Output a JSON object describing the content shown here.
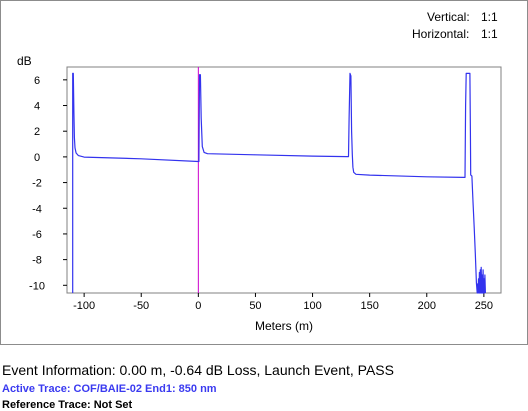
{
  "scale": {
    "vertical_label": "Vertical:",
    "vertical_value": "1:1",
    "horizontal_label": "Horizontal:",
    "horizontal_value": "1:1"
  },
  "chart_data": {
    "type": "line",
    "ylabel": "dB",
    "xlabel": "Meters (m)",
    "xlim": [
      -115,
      265
    ],
    "ylim": [
      -10.6,
      7.0
    ],
    "xticks": [
      -100,
      -50,
      0,
      50,
      100,
      150,
      200,
      250
    ],
    "yticks": [
      6,
      4,
      2,
      0,
      -2,
      -4,
      -6,
      -8,
      -10
    ],
    "trace_color": "#3333ee",
    "marker": {
      "x": 0,
      "color": "#cc00cc"
    },
    "series": [
      {
        "values": [
          [
            -110,
            -10.6
          ],
          [
            -110,
            6.5
          ],
          [
            -109.5,
            6.5
          ],
          [
            -109,
            3.5
          ],
          [
            -108.5,
            1.5
          ],
          [
            -108,
            0.7
          ],
          [
            -107,
            0.3
          ],
          [
            -105,
            0.1
          ],
          [
            -100,
            -0.02
          ],
          [
            -50,
            -0.15
          ],
          [
            0,
            -0.36
          ],
          [
            0.5,
            -0.36
          ],
          [
            1,
            6.4
          ],
          [
            1.8,
            6.4
          ],
          [
            2.5,
            3.0
          ],
          [
            3.5,
            0.8
          ],
          [
            5,
            0.35
          ],
          [
            8,
            0.25
          ],
          [
            50,
            0.16
          ],
          [
            100,
            0.06
          ],
          [
            130,
            0.02
          ],
          [
            131.5,
            0.02
          ],
          [
            132,
            3.0
          ],
          [
            132.8,
            6.5
          ],
          [
            133.6,
            6.3
          ],
          [
            134.2,
            2.0
          ],
          [
            134.8,
            0.2
          ],
          [
            135.3,
            -0.8
          ],
          [
            136,
            -1.2
          ],
          [
            138,
            -1.36
          ],
          [
            150,
            -1.42
          ],
          [
            200,
            -1.55
          ],
          [
            232,
            -1.6
          ],
          [
            233.5,
            -1.6
          ],
          [
            234,
            4.0
          ],
          [
            234.5,
            6.5
          ],
          [
            237.8,
            6.5
          ],
          [
            238.2,
            2.0
          ],
          [
            238.5,
            -1.4
          ],
          [
            239.5,
            -1.5
          ],
          [
            240.5,
            -3.5
          ],
          [
            241.5,
            -5.5
          ],
          [
            242.5,
            -7.5
          ],
          [
            243.5,
            -9.8
          ],
          [
            244.2,
            -10.6
          ],
          [
            244.5,
            -9.9
          ],
          [
            244.9,
            -10.6
          ],
          [
            245.3,
            -9.5
          ],
          [
            245.7,
            -10.6
          ],
          [
            246.1,
            -9.0
          ],
          [
            246.5,
            -10.6
          ],
          [
            246.9,
            -8.8
          ],
          [
            247.3,
            -10.6
          ],
          [
            247.7,
            -8.6
          ],
          [
            248.1,
            -10.6
          ],
          [
            248.5,
            -9.2
          ],
          [
            248.9,
            -10.6
          ],
          [
            249.3,
            -8.8
          ],
          [
            249.7,
            -10.6
          ],
          [
            250.1,
            -9.5
          ],
          [
            250.5,
            -10.6
          ],
          [
            250.9,
            -9.2
          ],
          [
            251.3,
            -10.6
          ]
        ]
      }
    ]
  },
  "events": {
    "info_label": "Event Information:",
    "info_text": "0.00 m,  -0.64 dB Loss,  Launch Event,  PASS",
    "active_trace": "Active Trace: COF/BAIE-02 End1: 850 nm",
    "reference_trace": "Reference Trace: Not Set"
  }
}
